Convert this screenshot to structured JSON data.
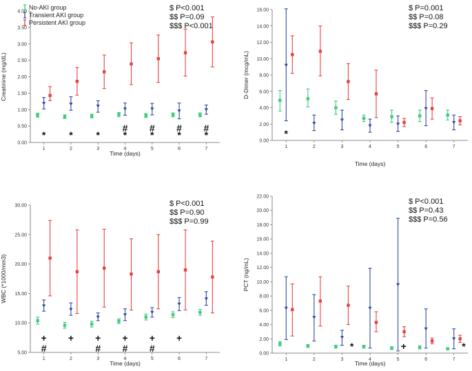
{
  "colors": {
    "noaki": "#3ecb7a",
    "transient": "#2f4aa0",
    "persistent": "#e5423f"
  },
  "legend": {
    "items": [
      {
        "name": "No-AKI group",
        "color": "#3ecb7a"
      },
      {
        "name": "Transient AKI group",
        "color": "#2f4aa0"
      },
      {
        "name": "Persistent AKI group",
        "color": "#e5423f"
      }
    ]
  },
  "chart_data": [
    {
      "id": "creatinine",
      "type": "scatter",
      "title": "",
      "xlabel": "Time (days)",
      "ylabel": "Creatinine (mg/dL)",
      "x": [
        1,
        2,
        3,
        4,
        5,
        6,
        7
      ],
      "xlim": [
        0.5,
        7.5
      ],
      "ylim": [
        0,
        4
      ],
      "yticks": [
        0,
        0.5,
        1,
        1.5,
        2,
        2.5,
        3,
        3.5,
        4
      ],
      "yticklabels": [
        "0.00",
        "0.50",
        "1.00",
        "1.50",
        "2.00",
        "2.50",
        "3.00",
        "3.50",
        "4.00"
      ],
      "stats": [
        "$ P<0.001",
        "$$ P=0.09",
        "$$$ P<0.001"
      ],
      "series": [
        {
          "name": "No-AKI group",
          "mean": [
            0.83,
            0.78,
            0.8,
            0.85,
            0.82,
            0.84,
            0.84
          ],
          "lower": [
            0.77,
            0.73,
            0.75,
            0.79,
            0.76,
            0.78,
            0.78
          ],
          "upper": [
            0.89,
            0.84,
            0.86,
            0.91,
            0.88,
            0.9,
            0.9
          ]
        },
        {
          "name": "Transient AKI group",
          "mean": [
            1.19,
            1.17,
            1.11,
            1.02,
            1.02,
            0.96,
            1.0
          ],
          "lower": [
            1.02,
            0.98,
            0.92,
            0.83,
            0.84,
            0.72,
            0.86
          ],
          "upper": [
            1.37,
            1.39,
            1.27,
            1.2,
            1.19,
            1.2,
            1.14
          ]
        },
        {
          "name": "Persistent AKI group",
          "mean": [
            1.43,
            1.86,
            2.15,
            2.39,
            2.55,
            2.73,
            3.06
          ],
          "lower": [
            1.27,
            1.44,
            1.64,
            1.76,
            1.83,
            2.02,
            2.3
          ],
          "upper": [
            1.7,
            2.28,
            2.66,
            3.03,
            3.27,
            3.45,
            3.82
          ]
        }
      ],
      "annotations": [
        {
          "x": 1,
          "row": 1,
          "text": "*"
        },
        {
          "x": 2,
          "row": 1,
          "text": "*"
        },
        {
          "x": 3,
          "row": 1,
          "text": "*"
        },
        {
          "x": 4,
          "row": 1,
          "text": "*"
        },
        {
          "x": 5,
          "row": 1,
          "text": "*"
        },
        {
          "x": 6,
          "row": 1,
          "text": "*"
        },
        {
          "x": 7,
          "row": 1,
          "text": "*"
        },
        {
          "x": 4,
          "row": 2,
          "text": "#"
        },
        {
          "x": 5,
          "row": 2,
          "text": "#"
        },
        {
          "x": 6,
          "row": 2,
          "text": "#"
        },
        {
          "x": 7,
          "row": 2,
          "text": "#"
        }
      ]
    },
    {
      "id": "ddimer",
      "type": "scatter",
      "title": "",
      "xlabel": "Time (days)",
      "ylabel": "D-Dimer (mcg/mL)",
      "x": [
        1,
        2,
        3,
        4,
        5,
        6,
        7
      ],
      "xlim": [
        0.5,
        7.5
      ],
      "ylim": [
        0,
        16
      ],
      "yticks": [
        0,
        2,
        4,
        6,
        8,
        10,
        12,
        14,
        16
      ],
      "yticklabels": [
        "0.00",
        "2.00",
        "4.00",
        "6.00",
        "8.00",
        "10.00",
        "12.00",
        "14.00",
        "16.00"
      ],
      "stats": [
        "$ P=0.001",
        "$$ P=0.08",
        "$$$ P=0.29"
      ],
      "series": [
        {
          "name": "No-AKI group",
          "mean": [
            4.9,
            5.1,
            4.0,
            2.7,
            2.9,
            3.0,
            3.1
          ],
          "lower": [
            3.6,
            4.1,
            3.2,
            2.3,
            2.2,
            2.3,
            2.5
          ],
          "upper": [
            6.1,
            6.3,
            4.8,
            3.1,
            3.7,
            3.7,
            3.7
          ]
        },
        {
          "name": "Transient AKI group",
          "mean": [
            9.2,
            2.1,
            2.5,
            1.8,
            2.0,
            3.9,
            2.2
          ],
          "lower": [
            2.4,
            1.2,
            1.3,
            1.0,
            1.1,
            1.8,
            1.3
          ],
          "upper": [
            16.1,
            3.1,
            3.7,
            2.6,
            3.0,
            6.1,
            3.1
          ]
        },
        {
          "name": "Persistent AKI group",
          "mean": [
            10.5,
            10.9,
            7.2,
            5.7,
            2.2,
            3.9,
            2.4
          ],
          "lower": [
            8.2,
            7.9,
            5.0,
            2.8,
            1.7,
            2.6,
            1.9
          ],
          "upper": [
            12.8,
            14.0,
            9.4,
            8.6,
            2.7,
            5.2,
            2.9
          ]
        }
      ],
      "annotations": [
        {
          "x": 1,
          "row": 1,
          "text": "*"
        }
      ]
    },
    {
      "id": "wbc",
      "type": "scatter",
      "title": "",
      "xlabel": "Time (days)",
      "ylabel": "WBC (*1000/mm3)",
      "x": [
        1,
        2,
        3,
        4,
        5,
        6,
        7
      ],
      "xlim": [
        0.5,
        7.5
      ],
      "ylim": [
        5,
        30
      ],
      "yticks": [
        5,
        10,
        15,
        20,
        25,
        30
      ],
      "yticklabels": [
        "5.00",
        "10.00",
        "15.00",
        "20.00",
        "25.00",
        "30.00"
      ],
      "stats": [
        "$ P<0.001",
        "$$ P=0.90",
        "$$$ P=0.99"
      ],
      "series": [
        {
          "name": "No-AKI group",
          "mean": [
            10.4,
            9.6,
            9.8,
            10.3,
            11.0,
            11.4,
            11.8
          ],
          "lower": [
            9.8,
            9.1,
            9.3,
            9.9,
            10.5,
            10.9,
            11.3
          ],
          "upper": [
            11.0,
            10.1,
            10.3,
            10.7,
            11.5,
            11.9,
            12.3
          ]
        },
        {
          "name": "Transient AKI group",
          "mean": [
            12.9,
            12.3,
            11.0,
            11.4,
            11.8,
            13.2,
            14.1
          ],
          "lower": [
            12.0,
            11.3,
            10.4,
            10.4,
            11.0,
            12.1,
            13.0
          ],
          "upper": [
            13.9,
            13.4,
            11.7,
            12.4,
            12.6,
            14.3,
            15.3
          ]
        },
        {
          "name": "Persistent AKI group",
          "mean": [
            21.0,
            18.7,
            19.3,
            18.3,
            18.7,
            19.0,
            17.8
          ],
          "lower": [
            14.6,
            11.6,
            12.7,
            12.2,
            12.4,
            12.2,
            11.7
          ],
          "upper": [
            27.4,
            25.8,
            25.9,
            24.3,
            25.0,
            25.8,
            23.9
          ]
        }
      ],
      "annotations": [
        {
          "x": 1,
          "row": 2,
          "text": "+"
        },
        {
          "x": 2,
          "row": 2,
          "text": "+"
        },
        {
          "x": 3,
          "row": 2,
          "text": "+"
        },
        {
          "x": 4,
          "row": 2,
          "text": "+"
        },
        {
          "x": 5,
          "row": 2,
          "text": "+"
        },
        {
          "x": 6,
          "row": 2,
          "text": "+"
        },
        {
          "x": 1,
          "row": 1,
          "text": "#"
        },
        {
          "x": 3,
          "row": 1,
          "text": "#"
        },
        {
          "x": 4,
          "row": 1,
          "text": "#"
        },
        {
          "x": 5,
          "row": 1,
          "text": "#"
        }
      ]
    },
    {
      "id": "pct",
      "type": "scatter",
      "title": "",
      "xlabel": "Time (days)",
      "ylabel": "PCT (ng/mL)",
      "x": [
        1,
        2,
        3,
        4,
        5,
        6,
        7
      ],
      "xlim": [
        0.5,
        7.5
      ],
      "ylim": [
        0,
        22
      ],
      "yticks": [
        0,
        2,
        4,
        6,
        8,
        10,
        12,
        14,
        16,
        18,
        20,
        22
      ],
      "yticklabels": [
        "0.00",
        "2.00",
        "4.00",
        "6.00",
        "8.00",
        "10.00",
        "12.00",
        "14.00",
        "16.00",
        "18.00",
        "20.00",
        "22.00"
      ],
      "stats": [
        "$ P<0.001",
        "$$ P=0.43",
        "$$$ P=0.56"
      ],
      "series": [
        {
          "name": "No-AKI group",
          "mean": [
            1.3,
            1.0,
            0.9,
            0.9,
            0.7,
            0.8,
            0.6
          ],
          "lower": [
            1.0,
            0.8,
            0.7,
            0.7,
            0.5,
            0.6,
            0.45
          ],
          "upper": [
            1.6,
            1.2,
            1.1,
            1.1,
            0.9,
            1.0,
            0.75
          ]
        },
        {
          "name": "Transient AKI group",
          "mean": [
            6.3,
            5.0,
            2.2,
            6.3,
            9.6,
            3.4,
            2.0
          ],
          "lower": [
            1.9,
            1.7,
            1.1,
            0.7,
            0.3,
            0.7,
            0.6
          ],
          "upper": [
            10.7,
            8.2,
            3.2,
            11.9,
            18.9,
            6.2,
            3.4
          ]
        },
        {
          "name": "Persistent AKI group",
          "mean": [
            6.1,
            7.3,
            6.7,
            4.3,
            3.0,
            1.7,
            2.0
          ],
          "lower": [
            2.4,
            3.8,
            4.0,
            3.0,
            2.3,
            1.3,
            1.5
          ],
          "upper": [
            9.7,
            10.7,
            9.4,
            5.8,
            3.7,
            2.1,
            2.5
          ]
        }
      ],
      "annotations": [
        {
          "x": 3.35,
          "row": 1,
          "text": "*"
        },
        {
          "x": 5.2,
          "row": 1,
          "text": "+"
        },
        {
          "x": 7.35,
          "row": 1,
          "text": "*"
        }
      ]
    }
  ]
}
